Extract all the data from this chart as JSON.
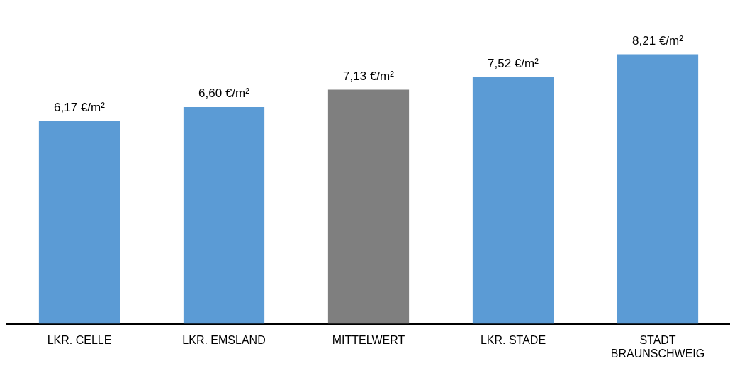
{
  "chart_data": {
    "type": "bar",
    "categories": [
      "LKR. CELLE",
      "LKR. EMSLAND",
      "MITTELWERT",
      "LKR. STADE",
      "STADT BRAUNSCHWEIG"
    ],
    "values": [
      6.17,
      6.6,
      7.13,
      7.52,
      8.21
    ],
    "colors": [
      "#5b9bd5",
      "#5b9bd5",
      "#7f7f7f",
      "#5b9bd5",
      "#5b9bd5"
    ],
    "value_labels": [
      "6,17 €/m²",
      "6,60 €/m²",
      "7,13 €/m²",
      "7,52 €/m²",
      "8,21 €/m²"
    ],
    "grid": false,
    "legend": false
  }
}
